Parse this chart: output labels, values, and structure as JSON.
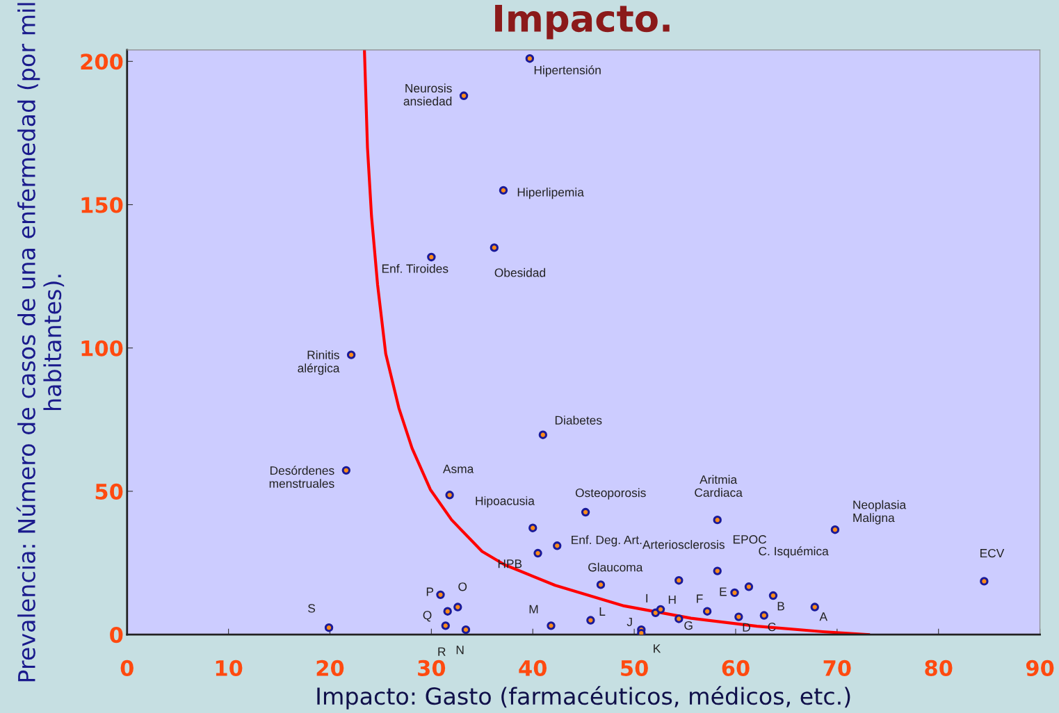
{
  "chart_data": {
    "type": "scatter",
    "title": "Impacto.",
    "xlabel": "Impacto: Gasto (farmacéuticos, médicos, etc.)",
    "ylabel": "Prevalencia: Número de casos de una enfermedad (por mil habitantes).",
    "xlim": [
      0,
      90
    ],
    "xticks": [
      0,
      10,
      20,
      30,
      40,
      50,
      60,
      70,
      80,
      90
    ],
    "ylim": [
      0,
      204
    ],
    "yticks": [
      0,
      50,
      100,
      150,
      200
    ],
    "grid": false,
    "marker": "circle",
    "series": [
      {
        "color": "#ff8c1a",
        "x": [
          39.7,
          33.2,
          37.1,
          36.2,
          30.0,
          22.1,
          41.0,
          21.6,
          31.8,
          40.0,
          45.2,
          42.4,
          40.5,
          46.7,
          54.4,
          58.2,
          58.2,
          61.3,
          69.8,
          84.5,
          30.9,
          32.6,
          31.6,
          31.4,
          33.4,
          19.9,
          41.8,
          45.7,
          50.7,
          50.7,
          52.1,
          52.6,
          54.4,
          57.2,
          59.9,
          60.3,
          62.8,
          63.7,
          67.8
        ],
        "values": [
          201,
          188,
          155,
          135,
          131.7,
          97.6,
          69.7,
          57.3,
          48.7,
          37.2,
          42.7,
          31,
          28.4,
          17.4,
          18.9,
          40,
          22.2,
          16.7,
          36.6,
          18.6,
          13.9,
          9.6,
          8.1,
          3.1,
          1.7,
          2.4,
          3.1,
          5.0,
          1.7,
          0.5,
          7.6,
          8.8,
          5.5,
          8.1,
          14.6,
          6.2,
          6.7,
          13.6,
          9.6
        ]
      },
      {
        "type": "line",
        "color": "#ff0000",
        "line_style": "solid",
        "marker": "none",
        "x": [
          23.4,
          23.7,
          24.1,
          24.7,
          25.5,
          26.8,
          28.1,
          29.9,
          32.0,
          35.0,
          37.2,
          42.2,
          49.0,
          55.6,
          62.1,
          68.6,
          73.1
        ],
        "values": [
          204,
          170,
          146,
          122,
          98,
          79,
          65,
          50.6,
          40,
          29,
          24.4,
          17.2,
          10,
          5.7,
          2.9,
          1.0,
          0
        ]
      }
    ],
    "annotations": [
      {
        "text": "Hipertensión",
        "x": 39.7,
        "y": 201
      },
      {
        "text": "Neurosis\nansiedad",
        "x": 33.2,
        "y": 188
      },
      {
        "text": "Hiperlipemia",
        "x": 37.1,
        "y": 155
      },
      {
        "text": "Obesidad",
        "x": 36.2,
        "y": 135
      },
      {
        "text": "Enf. Tiroides",
        "x": 30.0,
        "y": 131.7
      },
      {
        "text": "Rinitis\nalérgica",
        "x": 22.1,
        "y": 97.6
      },
      {
        "text": "Diabetes",
        "x": 41.0,
        "y": 69.7
      },
      {
        "text": "Desórdenes\nmenstruales",
        "x": 21.6,
        "y": 57.3
      },
      {
        "text": "Asma",
        "x": 31.8,
        "y": 48.7
      },
      {
        "text": "Hipoacusia",
        "x": 40.0,
        "y": 37.2
      },
      {
        "text": "Osteoporosis",
        "x": 45.2,
        "y": 42.7
      },
      {
        "text": "Enf. Deg. Art.",
        "x": 42.4,
        "y": 31
      },
      {
        "text": "HPB",
        "x": 40.5,
        "y": 28.4
      },
      {
        "text": "Glaucoma",
        "x": 46.7,
        "y": 17.4
      },
      {
        "text": "Arteriosclerosis",
        "x": 54.4,
        "y": 18.9
      },
      {
        "text": "Aritmia\nCardiaca",
        "x": 58.2,
        "y": 40
      },
      "EPOC",
      "C. Isquémica",
      {
        "text": "Neoplasia\nMaligna",
        "x": 69.8,
        "y": 36.6
      },
      {
        "text": "ECV",
        "x": 84.5,
        "y": 18.6
      },
      {
        "text": "P",
        "x": 30.9,
        "y": 13.9
      },
      {
        "text": "O",
        "x": 32.6,
        "y": 9.6
      },
      {
        "text": "Q",
        "x": 31.6,
        "y": 8.1
      },
      {
        "text": "R",
        "x": 31.4,
        "y": 3.1
      },
      {
        "text": "N",
        "x": 33.4,
        "y": 1.7
      },
      {
        "text": "S",
        "x": 19.9,
        "y": 2.4
      },
      {
        "text": "M",
        "x": 41.8,
        "y": 3.1
      },
      {
        "text": "L",
        "x": 45.7,
        "y": 5.0
      },
      {
        "text": "J",
        "x": 50.7,
        "y": 1.7
      },
      {
        "text": "K",
        "x": 50.7,
        "y": 0.5
      },
      {
        "text": "I",
        "x": 52.1,
        "y": 7.6
      },
      {
        "text": "H",
        "x": 52.6,
        "y": 8.8
      },
      {
        "text": "G",
        "x": 54.4,
        "y": 5.5
      },
      {
        "text": "F",
        "x": 57.2,
        "y": 8.1
      },
      {
        "text": "E",
        "x": 59.9,
        "y": 14.6
      },
      {
        "text": "D",
        "x": 60.3,
        "y": 6.2
      },
      {
        "text": "C",
        "x": 62.8,
        "y": 6.7
      },
      {
        "text": "B",
        "x": 63.7,
        "y": 13.6
      },
      {
        "text": "A",
        "x": 67.8,
        "y": 9.6
      }
    ]
  }
}
